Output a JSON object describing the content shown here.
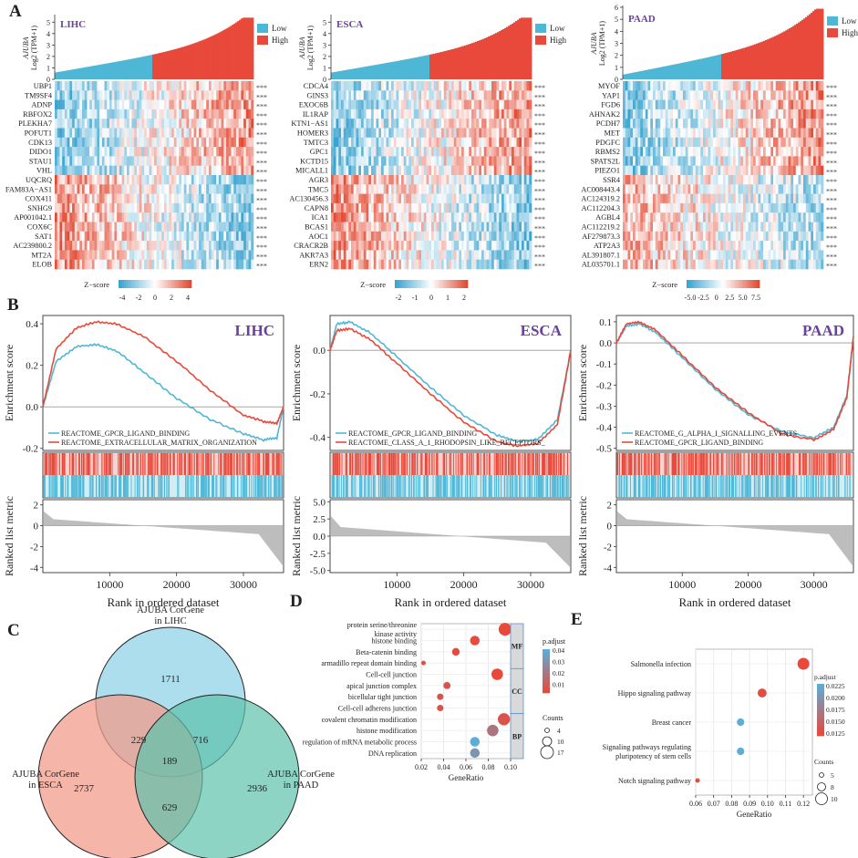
{
  "colors": {
    "low": "#4fb7d6",
    "high": "#e8493a",
    "title": "#6a3fa0",
    "gene_text": "#222222",
    "axis": "#333333",
    "venn_blue": "#9fd8ea",
    "venn_red": "#f29c8c",
    "venn_teal": "#5cc2ad",
    "metric": "#bdbdbd"
  },
  "panel_labels": {
    "A": "A",
    "B": "B",
    "C": "C",
    "D": "D",
    "E": "E"
  },
  "stars": "***",
  "heatmap_common": {
    "legend_low": "Low",
    "legend_high": "High",
    "ylabel_line1": "AJUBA",
    "ylabel_line2": "Log2 (TPM+1)",
    "zscore_label": "Z−score"
  },
  "heatmaps": [
    {
      "title": "LIHC",
      "yticks": [
        "0",
        "1",
        "2",
        "3",
        "4",
        "5"
      ],
      "ymax": 5.5,
      "scale_ticks": [
        "-4",
        "-2",
        "0",
        "2",
        "4"
      ],
      "genes_up": [
        "UBP1",
        "TM9SF4",
        "ADNP",
        "RBFOX2",
        "PLEKHA7",
        "POFUT1",
        "CDK13",
        "DIDO1",
        "STAU1",
        "VHL"
      ],
      "genes_down": [
        "UQCRQ",
        "FAM83A−AS1",
        "COX411",
        "SNHG9",
        "AP001042.1",
        "COX6C",
        "SAT1",
        "AC239800.2",
        "MT2A",
        "ELOB"
      ]
    },
    {
      "title": "ESCA",
      "yticks": [
        "0",
        "1",
        "2",
        "3",
        "4",
        "5"
      ],
      "ymax": 5.5,
      "scale_ticks": [
        "-2",
        "-1",
        "0",
        "1",
        "2"
      ],
      "genes_up": [
        "CDCA4",
        "GINS3",
        "EXOC6B",
        "IL1RAP",
        "KTN1−AS1",
        "HOMER3",
        "TMTC3",
        "GPC1",
        "KCTD15",
        "MICALL1"
      ],
      "genes_down": [
        "AGR3",
        "TMC5",
        "AC130456.3",
        "CAPN8",
        "ICA1",
        "BCAS1",
        "AOC1",
        "CRACR2B",
        "AKR7A3",
        "ERN2"
      ]
    },
    {
      "title": "PAAD",
      "yticks": [
        "0",
        "1",
        "2",
        "3",
        "4",
        "5",
        "6"
      ],
      "ymax": 6.0,
      "scale_ticks": [
        "-5.0",
        "-2.5",
        "0",
        "2.5",
        "5.0",
        "7.5"
      ],
      "genes_up": [
        "MYOF",
        "YAP1",
        "FGD6",
        "AHNAK2",
        "PCDH7",
        "MET",
        "PDGFC",
        "RBMS2",
        "SPATS2L",
        "PIEZO1"
      ],
      "genes_down": [
        "SSR4",
        "AC008443.4",
        "AC124319.2",
        "AC112204.3",
        "AGBL4",
        "AC112219.2",
        "AF279873.3",
        "ATP2A3",
        "AL391807.1",
        "AL035701.1"
      ]
    }
  ],
  "gsea_common": {
    "ylabel": "Enrichment score",
    "rank_ylabel": "Ranked list metric",
    "xlabel": "Rank in ordered dataset",
    "xticks": [
      "10000",
      "20000",
      "30000"
    ]
  },
  "gsea": [
    {
      "title": "LIHC",
      "yticks": [
        "0.4",
        "0.2",
        "0.0",
        "-0.2"
      ],
      "ymin": -0.21,
      "ymax": 0.44,
      "legend": [
        "REACTOME_GPCR_LIGAND_BINDING",
        "REACTOME_EXTRACELLULAR_MATRIX_ORGANIZATION"
      ],
      "rank_yticks": [
        "2",
        "0",
        "-2",
        "-4"
      ],
      "rank_min": -4.5,
      "rank_max": 2.5,
      "curve_blue": [
        [
          0,
          0
        ],
        [
          2000,
          0.22
        ],
        [
          5000,
          0.29
        ],
        [
          8000,
          0.3
        ],
        [
          11000,
          0.27
        ],
        [
          15000,
          0.17
        ],
        [
          20000,
          0.04
        ],
        [
          25000,
          -0.06
        ],
        [
          30000,
          -0.13
        ],
        [
          33000,
          -0.16
        ],
        [
          35000,
          -0.15
        ],
        [
          36000,
          0
        ]
      ],
      "curve_red": [
        [
          0,
          0
        ],
        [
          2000,
          0.28
        ],
        [
          5000,
          0.38
        ],
        [
          8000,
          0.41
        ],
        [
          11000,
          0.4
        ],
        [
          15000,
          0.34
        ],
        [
          20000,
          0.22
        ],
        [
          25000,
          0.08
        ],
        [
          30000,
          -0.04
        ],
        [
          33000,
          -0.07
        ],
        [
          35000,
          -0.08
        ],
        [
          36000,
          0
        ]
      ]
    },
    {
      "title": "ESCA",
      "yticks": [
        "0.0",
        "-0.2",
        "-0.4"
      ],
      "ymin": -0.46,
      "ymax": 0.16,
      "legend": [
        "REACTOME_GPCR_LIGAND_BINDING",
        "REACTOME_CLASS_A_1_RHODOPSIN_LIKE_RECEPTORS_"
      ],
      "rank_yticks": [
        "5.0",
        "2.5",
        "0.0",
        "-2.5",
        "-5.0"
      ],
      "rank_min": -5.3,
      "rank_max": 5.3,
      "curve_blue": [
        [
          0,
          0
        ],
        [
          1000,
          0.12
        ],
        [
          3000,
          0.13
        ],
        [
          6000,
          0.08
        ],
        [
          10000,
          -0.03
        ],
        [
          15000,
          -0.17
        ],
        [
          20000,
          -0.3
        ],
        [
          25000,
          -0.39
        ],
        [
          28000,
          -0.42
        ],
        [
          31000,
          -0.41
        ],
        [
          34000,
          -0.32
        ],
        [
          36000,
          0
        ]
      ],
      "curve_red": [
        [
          0,
          0
        ],
        [
          1000,
          0.09
        ],
        [
          3000,
          0.1
        ],
        [
          6000,
          0.05
        ],
        [
          10000,
          -0.06
        ],
        [
          15000,
          -0.2
        ],
        [
          20000,
          -0.33
        ],
        [
          25000,
          -0.42
        ],
        [
          28000,
          -0.44
        ],
        [
          31000,
          -0.43
        ],
        [
          34000,
          -0.34
        ],
        [
          36000,
          0
        ]
      ]
    },
    {
      "title": "PAAD",
      "yticks": [
        "0.1",
        "0.0",
        "-0.1",
        "-0.2",
        "-0.3",
        "-0.4",
        "-0.5"
      ],
      "ymin": -0.51,
      "ymax": 0.13,
      "legend": [
        "REACTOME_G_ALPHA_I_SIGNALLING_EVENTS",
        "REACTOME_GPCR_LIGAND_BINDING"
      ],
      "rank_yticks": [
        "2",
        "0",
        "-2",
        "-4"
      ],
      "rank_min": -4.5,
      "rank_max": 2.5,
      "curve_blue": [
        [
          0,
          0
        ],
        [
          1500,
          0.08
        ],
        [
          3500,
          0.09
        ],
        [
          6000,
          0.05
        ],
        [
          10000,
          -0.07
        ],
        [
          15000,
          -0.22
        ],
        [
          20000,
          -0.34
        ],
        [
          25000,
          -0.42
        ],
        [
          30000,
          -0.45
        ],
        [
          33000,
          -0.4
        ],
        [
          35000,
          -0.25
        ],
        [
          36000,
          0.03
        ]
      ],
      "curve_red": [
        [
          0,
          0
        ],
        [
          1500,
          0.09
        ],
        [
          3500,
          0.1
        ],
        [
          6000,
          0.06
        ],
        [
          10000,
          -0.06
        ],
        [
          15000,
          -0.21
        ],
        [
          20000,
          -0.33
        ],
        [
          25000,
          -0.43
        ],
        [
          30000,
          -0.46
        ],
        [
          33000,
          -0.41
        ],
        [
          35000,
          -0.26
        ],
        [
          36000,
          0.03
        ]
      ]
    }
  ],
  "venn": {
    "labels": [
      "AJUBA CorGene in LIHC",
      "AJUBA CorGene in ESCA",
      "AJUBA CorGene in PAAD"
    ],
    "label_lines": [
      [
        "AJUBA CorGene",
        "in LIHC"
      ],
      [
        "AJUBA CorGene",
        "in ESCA"
      ],
      [
        "AJUBA CorGene",
        "in PAAD"
      ]
    ],
    "regions": {
      "lihc_only": "1711",
      "esca_only": "2737",
      "paad_only": "2936",
      "lihc_esca": "229",
      "lihc_paad": "716",
      "esca_paad": "629",
      "all": "189"
    }
  },
  "chart_data": [
    {
      "type": "bar",
      "panel": "A-LIHC",
      "title": "LIHC",
      "ylabel": "AJUBA Log2 (TPM+1)",
      "categories": [
        "Low",
        "High"
      ],
      "ylim": [
        0,
        5.5
      ],
      "note": "AJUBA expression sorted ascending, split into Low and High groups"
    },
    {
      "type": "bar",
      "panel": "A-ESCA",
      "title": "ESCA",
      "ylabel": "AJUBA Log2 (TPM+1)",
      "categories": [
        "Low",
        "High"
      ],
      "ylim": [
        0,
        5.5
      ]
    },
    {
      "type": "bar",
      "panel": "A-PAAD",
      "title": "PAAD",
      "ylabel": "AJUBA Log2 (TPM+1)",
      "categories": [
        "Low",
        "High"
      ],
      "ylim": [
        0,
        6
      ]
    },
    {
      "type": "line",
      "panel": "B-LIHC",
      "title": "LIHC",
      "xlabel": "Rank in ordered dataset",
      "ylabel": "Enrichment score",
      "ylim": [
        -0.2,
        0.4
      ],
      "series": [
        {
          "name": "REACTOME_GPCR_LIGAND_BINDING",
          "x": [
            0,
            5000,
            8000,
            15000,
            20000,
            30000,
            36000
          ],
          "values": [
            0,
            0.29,
            0.3,
            0.17,
            0.04,
            -0.13,
            0
          ]
        },
        {
          "name": "REACTOME_EXTRACELLULAR_MATRIX_ORGANIZATION",
          "x": [
            0,
            5000,
            8000,
            15000,
            20000,
            30000,
            36000
          ],
          "values": [
            0,
            0.38,
            0.41,
            0.34,
            0.22,
            -0.04,
            0
          ]
        }
      ]
    },
    {
      "type": "line",
      "panel": "B-ESCA",
      "title": "ESCA",
      "xlabel": "Rank in ordered dataset",
      "ylabel": "Enrichment score",
      "ylim": [
        -0.45,
        0.15
      ],
      "series": [
        {
          "name": "REACTOME_GPCR_LIGAND_BINDING",
          "x": [
            0,
            3000,
            10000,
            20000,
            28000,
            36000
          ],
          "values": [
            0,
            0.13,
            -0.03,
            -0.3,
            -0.42,
            0
          ]
        },
        {
          "name": "REACTOME_CLASS_A_1_RHODOPSIN_LIKE_RECEPTORS_",
          "x": [
            0,
            3000,
            10000,
            20000,
            28000,
            36000
          ],
          "values": [
            0,
            0.1,
            -0.06,
            -0.33,
            -0.44,
            0
          ]
        }
      ]
    },
    {
      "type": "line",
      "panel": "B-PAAD",
      "title": "PAAD",
      "xlabel": "Rank in ordered dataset",
      "ylabel": "Enrichment score",
      "ylim": [
        -0.5,
        0.1
      ],
      "series": [
        {
          "name": "REACTOME_G_ALPHA_I_SIGNALLING_EVENTS",
          "x": [
            0,
            3500,
            10000,
            20000,
            30000,
            36000
          ],
          "values": [
            0,
            0.09,
            -0.07,
            -0.34,
            -0.45,
            0.03
          ]
        },
        {
          "name": "REACTOME_GPCR_LIGAND_BINDING",
          "x": [
            0,
            3500,
            10000,
            20000,
            30000,
            36000
          ],
          "values": [
            0,
            0.1,
            -0.06,
            -0.33,
            -0.46,
            0.03
          ]
        }
      ]
    },
    {
      "type": "scatter",
      "panel": "D",
      "xlabel": "GeneRatio",
      "xlim": [
        0.02,
        0.1
      ],
      "xticks": [
        "0.02",
        "0.04",
        "0.06",
        "0.08",
        "0.10"
      ],
      "color_title": "p.adjust",
      "color_ticks": [
        "0.04",
        "0.03",
        "0.02",
        "0.01"
      ],
      "size_title": "Counts",
      "size_ticks": [
        "4",
        "10",
        "17"
      ],
      "facets": [
        "MF",
        "CC",
        "BP"
      ],
      "points": [
        {
          "term_lines": [
            "protein serine/threonine",
            "kinase activity"
          ],
          "term": "protein serine/threonine kinase activity",
          "facet": "MF",
          "x": 0.095,
          "count": 17,
          "padj": 0.001
        },
        {
          "term_lines": [
            "histone binding"
          ],
          "term": "histone binding",
          "facet": "MF",
          "x": 0.068,
          "count": 12,
          "padj": 0.002
        },
        {
          "term_lines": [
            "Beta-catenin binding"
          ],
          "term": "Beta-catenin binding",
          "facet": "MF",
          "x": 0.051,
          "count": 9,
          "padj": 0.002
        },
        {
          "term_lines": [
            "armadillo repeat domain binding"
          ],
          "term": "armadillo repeat domain binding",
          "facet": "MF",
          "x": 0.022,
          "count": 4,
          "padj": 0.003
        },
        {
          "term_lines": [
            "Cell-cell junction"
          ],
          "term": "Cell-cell junction",
          "facet": "CC",
          "x": 0.088,
          "count": 15,
          "padj": 0.001
        },
        {
          "term_lines": [
            "apical junction complex"
          ],
          "term": "apical junction complex",
          "facet": "CC",
          "x": 0.043,
          "count": 8,
          "padj": 0.005
        },
        {
          "term_lines": [
            "bicellular tight junction"
          ],
          "term": "bicellular tight junction",
          "facet": "CC",
          "x": 0.037,
          "count": 7,
          "padj": 0.005
        },
        {
          "term_lines": [
            "Cell-cell adherens junction"
          ],
          "term": "Cell-cell adherens junction",
          "facet": "CC",
          "x": 0.037,
          "count": 7,
          "padj": 0.005
        },
        {
          "term_lines": [
            "covalent chromatin modification"
          ],
          "term": "covalent chromatin modification",
          "facet": "BP",
          "x": 0.094,
          "count": 16,
          "padj": 0.005
        },
        {
          "term_lines": [
            "histone modification"
          ],
          "term": "histone modification",
          "facet": "BP",
          "x": 0.084,
          "count": 15,
          "padj": 0.018
        },
        {
          "term_lines": [
            "regulation of mRNA metabolic process"
          ],
          "term": "regulation of mRNA metabolic process",
          "facet": "BP",
          "x": 0.068,
          "count": 12,
          "padj": 0.04
        },
        {
          "term_lines": [
            "DNA replication"
          ],
          "term": "DNA replication",
          "facet": "BP",
          "x": 0.068,
          "count": 12,
          "padj": 0.03
        }
      ]
    },
    {
      "type": "scatter",
      "panel": "E",
      "xlabel": "GeneRatio",
      "xlim": [
        0.06,
        0.125
      ],
      "xticks": [
        "0.06",
        "0.07",
        "0.08",
        "0.09",
        "0.10",
        "0.11",
        "0.12"
      ],
      "color_title": "p.adjust",
      "color_ticks": [
        "0.0225",
        "0.0200",
        "0.0175",
        "0.0150",
        "0.0125"
      ],
      "size_title": "Counts",
      "size_ticks": [
        "5",
        "8",
        "10"
      ],
      "points": [
        {
          "term_lines": [
            "Salmonella infection"
          ],
          "term": "Salmonella infection",
          "x": 0.12,
          "count": 10,
          "padj": 0.0115
        },
        {
          "term_lines": [
            "Hippo signaling pathway"
          ],
          "term": "Hippo signaling pathway",
          "x": 0.097,
          "count": 8,
          "padj": 0.012
        },
        {
          "term_lines": [
            "Breast cancer"
          ],
          "term": "Breast cancer",
          "x": 0.085,
          "count": 7,
          "padj": 0.0235
        },
        {
          "term_lines": [
            "Signaling pathways regulating",
            "pluripotency of stem cells"
          ],
          "term": "Signaling pathways regulating pluripotency of stem cells",
          "x": 0.085,
          "count": 7,
          "padj": 0.0235
        },
        {
          "term_lines": [
            "Notch signaling pathway"
          ],
          "term": "Notch signaling pathway",
          "x": 0.061,
          "count": 5,
          "padj": 0.012
        }
      ]
    }
  ]
}
